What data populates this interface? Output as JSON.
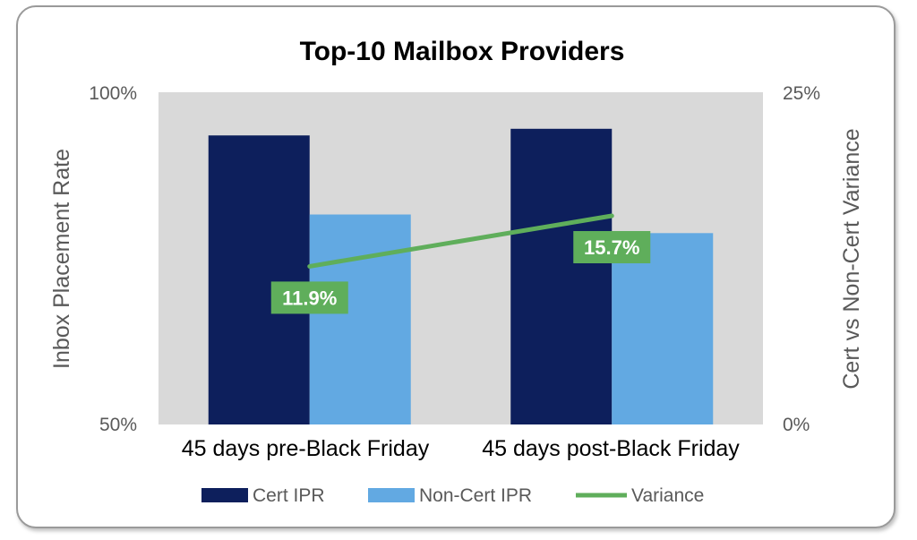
{
  "chart_data": {
    "type": "bar",
    "title": "Top-10 Mailbox Providers",
    "categories": [
      "45 days pre-Black Friday",
      "45 days post-Black Friday"
    ],
    "ylabel": "Inbox Placement Rate",
    "ylim": [
      50,
      100
    ],
    "y_ticks": [
      "50%",
      "100%"
    ],
    "y2label": "Cert vs Non-Cert Variance",
    "y2lim": [
      0,
      25
    ],
    "y2_ticks": [
      "0%",
      "25%"
    ],
    "series": [
      {
        "name": "Cert IPR",
        "kind": "bar",
        "axis": "left",
        "color": "#0d1f5c",
        "values": [
          93.5,
          94.5
        ]
      },
      {
        "name": "Non-Cert IPR",
        "kind": "bar",
        "axis": "left",
        "color": "#62a9e2",
        "values": [
          81.6,
          78.8
        ]
      },
      {
        "name": "Variance",
        "kind": "line",
        "axis": "right",
        "color": "#5fae5b",
        "values": [
          11.9,
          15.7
        ],
        "labels": [
          "11.9%",
          "15.7%"
        ]
      }
    ],
    "plot_background": "#d9d9d9",
    "legend_position": "bottom",
    "grid": false
  }
}
